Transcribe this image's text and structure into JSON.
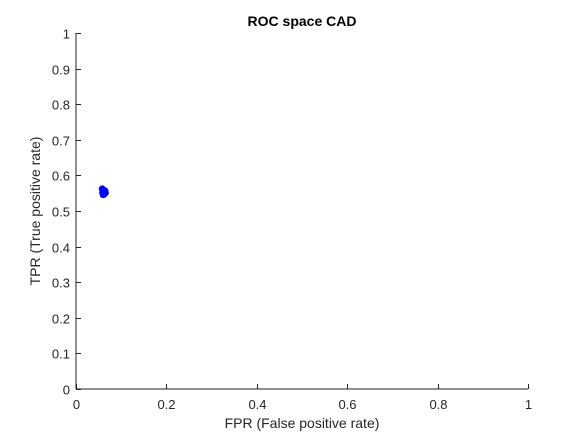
{
  "chart_data": {
    "type": "scatter",
    "title": "ROC space CAD",
    "xlabel": "FPR (False positive rate)",
    "ylabel": "TPR (True positive rate)",
    "xlim": [
      0,
      1
    ],
    "ylim": [
      0,
      1
    ],
    "xticks": [
      0,
      0.2,
      0.4,
      0.6,
      0.8,
      1
    ],
    "xtick_labels": [
      "0",
      "0.2",
      "0.4",
      "0.6",
      "0.8",
      "1"
    ],
    "yticks": [
      0,
      0.1,
      0.2,
      0.3,
      0.4,
      0.5,
      0.6,
      0.7,
      0.8,
      0.9,
      1
    ],
    "ytick_labels": [
      "0",
      "0.1",
      "0.2",
      "0.3",
      "0.4",
      "0.5",
      "0.6",
      "0.7",
      "0.8",
      "0.9",
      "1"
    ],
    "grid": false,
    "series": [
      {
        "color": "#0000ff",
        "marker": "filled-circle",
        "points": [
          {
            "x": 0.058,
            "y": 0.562
          },
          {
            "x": 0.06,
            "y": 0.558
          },
          {
            "x": 0.062,
            "y": 0.555
          },
          {
            "x": 0.059,
            "y": 0.552
          },
          {
            "x": 0.061,
            "y": 0.549
          },
          {
            "x": 0.063,
            "y": 0.553
          },
          {
            "x": 0.064,
            "y": 0.557
          },
          {
            "x": 0.062,
            "y": 0.547
          },
          {
            "x": 0.06,
            "y": 0.546
          },
          {
            "x": 0.065,
            "y": 0.551
          }
        ]
      }
    ]
  }
}
